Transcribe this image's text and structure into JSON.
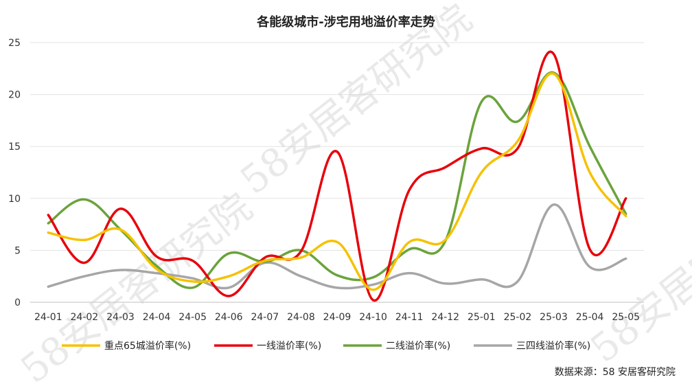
{
  "chart_data": {
    "type": "line",
    "title": "各能级城市-涉宅用地溢价率走势",
    "categories": [
      "24-01",
      "24-02",
      "24-03",
      "24-04",
      "24-05",
      "24-06",
      "24-07",
      "24-08",
      "24-09",
      "24-10",
      "24-11",
      "24-12",
      "25-01",
      "25-02",
      "25-03",
      "25-04",
      "25-05"
    ],
    "ylim": [
      0,
      25
    ],
    "yticks": [
      0,
      5,
      10,
      15,
      20,
      25
    ],
    "grid": true,
    "legend_position": "bottom",
    "series": [
      {
        "name": "重点65城溢价率(%)",
        "color": "#f5c200",
        "values": [
          6.7,
          6.0,
          7.0,
          3.2,
          2.0,
          2.5,
          4.0,
          4.3,
          5.8,
          1.2,
          5.8,
          6.0,
          12.5,
          15.5,
          22.0,
          12.5,
          8.3
        ]
      },
      {
        "name": "一线溢价率(%)",
        "color": "#e8000b",
        "values": [
          8.4,
          3.8,
          9.0,
          4.4,
          4.0,
          0.6,
          4.3,
          4.9,
          14.5,
          0.2,
          10.8,
          13.0,
          14.8,
          14.8,
          23.9,
          5.1,
          10.0
        ]
      },
      {
        "name": "二线溢价率(%)",
        "color": "#6aa33b",
        "values": [
          7.6,
          9.9,
          7.0,
          3.5,
          1.4,
          4.7,
          3.9,
          5.0,
          2.6,
          2.4,
          5.1,
          5.9,
          19.3,
          17.4,
          22.1,
          15.0,
          8.5
        ]
      },
      {
        "name": "三四线溢价率(%)",
        "color": "#a6a6a6",
        "values": [
          1.5,
          2.5,
          3.1,
          2.8,
          2.3,
          1.4,
          3.8,
          2.5,
          1.4,
          1.7,
          2.8,
          1.8,
          2.2,
          2.0,
          9.4,
          3.4,
          4.2
        ]
      }
    ]
  },
  "source_text": "数据来源：58 安居客研究院",
  "watermark": {
    "text": "58安居客研究院"
  }
}
